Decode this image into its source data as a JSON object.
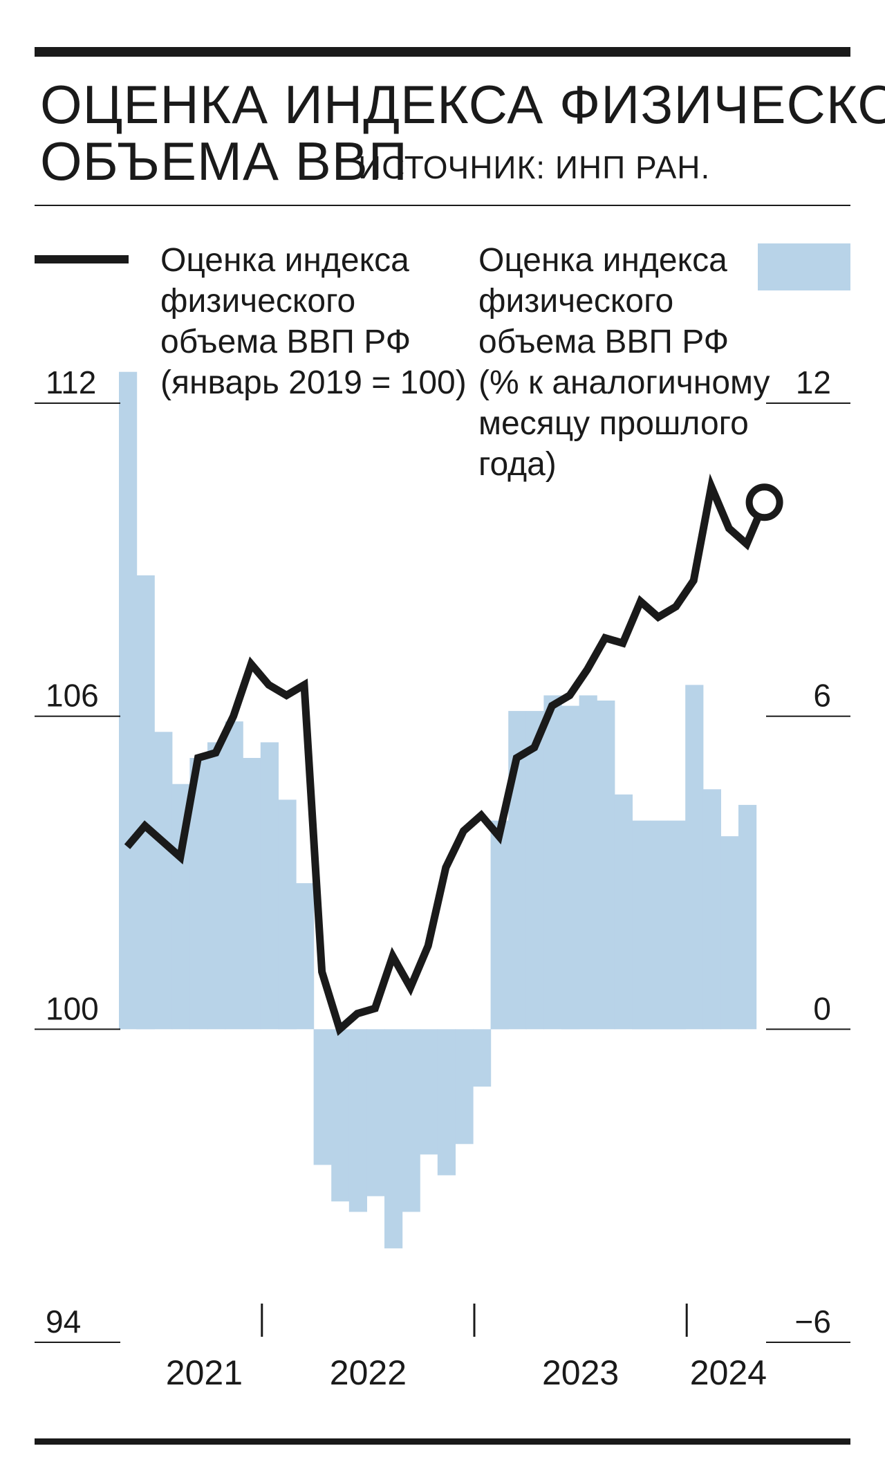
{
  "header": {
    "title_line1": "ОЦЕНКА ИНДЕКСА ФИЗИЧЕСКОГО",
    "title_line2": "ОБЪЕМА ВВП",
    "source": "ИСТОЧНИК: ИНП РАН."
  },
  "colors": {
    "line": "#1a1a1a",
    "bars": "#b8d3e8",
    "rule": "#1a1a1a"
  },
  "chart_data": {
    "type": "bar",
    "title": "ОЦЕНКА ИНДЕКСА ФИЗИЧЕСКОГО ОБЪЕМА ВВП",
    "left_axis": {
      "ylim": [
        94,
        112
      ],
      "ticks": [
        "112",
        "106",
        "100",
        "94"
      ],
      "tick_values": [
        112,
        106,
        100,
        94
      ]
    },
    "right_axis": {
      "ylim": [
        -6,
        12
      ],
      "ticks": [
        "12",
        "6",
        "0",
        "−6"
      ],
      "tick_values": [
        12,
        6,
        0,
        -6
      ]
    },
    "years": [
      "2021",
      "2022",
      "2023",
      "2024"
    ],
    "series": [
      {
        "name_lines": [
          "Оценка индекса",
          "физического",
          "объема ВВП РФ",
          "(январь 2019 = 100)"
        ],
        "type": "line",
        "axis": "left",
        "values": [
          103.5,
          103.9,
          103.6,
          103.3,
          105.2,
          105.3,
          106.0,
          107.0,
          106.6,
          106.4,
          106.6,
          101.1,
          100.0,
          100.3,
          100.4,
          101.4,
          100.8,
          101.6,
          103.1,
          103.8,
          104.1,
          103.7,
          105.2,
          105.4,
          106.2,
          106.4,
          106.9,
          107.5,
          107.4,
          108.2,
          107.9,
          108.1,
          108.6,
          110.4,
          109.6,
          109.3,
          110.1
        ]
      },
      {
        "name_lines": [
          "Оценка индекса",
          "физического",
          "объема ВВП РФ",
          "(% к аналогичному",
          "месяцу прошлого",
          "года)"
        ],
        "type": "bar",
        "axis": "right",
        "values": [
          12.6,
          8.7,
          5.7,
          4.7,
          5.2,
          5.5,
          5.9,
          5.2,
          5.5,
          4.4,
          2.8,
          -2.6,
          -3.3,
          -3.5,
          -3.2,
          -4.2,
          -3.5,
          -2.4,
          -2.8,
          -2.2,
          -1.1,
          4.0,
          6.1,
          6.1,
          6.4,
          6.2,
          6.4,
          6.3,
          4.5,
          4.0,
          4.0,
          4.0,
          6.6,
          4.6,
          3.7,
          4.3
        ]
      }
    ]
  }
}
